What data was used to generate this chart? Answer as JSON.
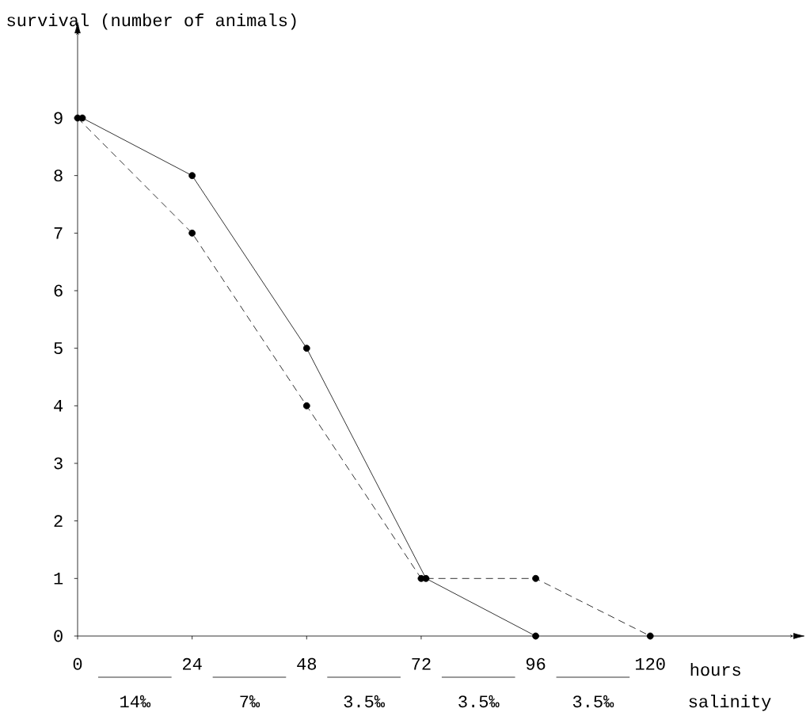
{
  "chart_data": {
    "type": "line",
    "ylabel": "survival (number of animals)",
    "xlabel": "hours",
    "series": [
      {
        "color": "#000000",
        "line_style": "solid",
        "x": [
          1,
          24,
          48,
          73,
          96
        ],
        "values": [
          9,
          8,
          5,
          1,
          0
        ]
      },
      {
        "color": "#000000",
        "line_style": "dashed",
        "x": [
          0,
          24,
          48,
          72,
          96,
          120
        ],
        "values": [
          9,
          7,
          4,
          1,
          1,
          0
        ]
      }
    ],
    "xlim": [
      0,
      150
    ],
    "ylim": [
      0,
      10.5
    ],
    "xticks": [
      0,
      24,
      48,
      72,
      96,
      120
    ],
    "yticks": [
      0,
      1,
      2,
      3,
      4,
      5,
      6,
      7,
      8,
      9
    ],
    "marker": "circle",
    "grid": false,
    "annotations": [
      "14‰",
      "7‰",
      "3.5‰",
      "3.5‰",
      "3.5‰",
      "salinity"
    ]
  }
}
